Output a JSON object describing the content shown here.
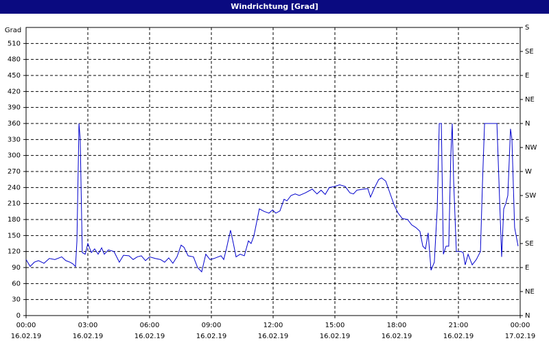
{
  "chart_data": {
    "type": "line",
    "title": "Windrichtung [Grad]",
    "y_label": "Grad",
    "color": "#0000cc",
    "grid": true,
    "xlim": [
      0,
      24
    ],
    "xticks": [
      {
        "value": 0,
        "label": "00:00"
      },
      {
        "value": 3,
        "label": "03:00"
      },
      {
        "value": 6,
        "label": "06:00"
      },
      {
        "value": 9,
        "label": "09:00"
      },
      {
        "value": 12,
        "label": "12:00"
      },
      {
        "value": 15,
        "label": "15:00"
      },
      {
        "value": 18,
        "label": "18:00"
      },
      {
        "value": 21,
        "label": "21:00"
      },
      {
        "value": 24,
        "label": "00:00"
      }
    ],
    "xtick_dates": [
      "16.02.19",
      "16.02.19",
      "16.02.19",
      "16.02.19",
      "16.02.19",
      "16.02.19",
      "16.02.19",
      "16.02.19",
      "17.02.19"
    ],
    "ylim": [
      0,
      540
    ],
    "yticks": [
      0,
      30,
      60,
      90,
      120,
      150,
      180,
      210,
      240,
      270,
      300,
      330,
      360,
      390,
      420,
      450,
      480,
      510
    ],
    "y2lim": [
      0,
      540
    ],
    "y2ticks": [
      {
        "value": 0,
        "label": "N"
      },
      {
        "value": 45,
        "label": "NE"
      },
      {
        "value": 90,
        "label": "E"
      },
      {
        "value": 135,
        "label": "SE"
      },
      {
        "value": 180,
        "label": "S"
      },
      {
        "value": 225,
        "label": "SW"
      },
      {
        "value": 270,
        "label": "W"
      },
      {
        "value": 315,
        "label": "NW"
      },
      {
        "value": 360,
        "label": "N"
      },
      {
        "value": 405,
        "label": "NE"
      },
      {
        "value": 450,
        "label": "E"
      },
      {
        "value": 495,
        "label": "SE"
      },
      {
        "value": 540,
        "label": "S"
      }
    ],
    "x": [
      0,
      0.2,
      0.4,
      0.6,
      0.87,
      1.13,
      1.4,
      1.73,
      1.93,
      2.13,
      2.27,
      2.4,
      2.47,
      2.57,
      2.63,
      2.73,
      2.87,
      3.0,
      3.17,
      3.33,
      3.5,
      3.67,
      3.8,
      4.0,
      4.27,
      4.53,
      4.73,
      5.0,
      5.2,
      5.4,
      5.6,
      5.8,
      6.0,
      6.27,
      6.53,
      6.73,
      6.93,
      7.13,
      7.33,
      7.53,
      7.67,
      7.87,
      8.13,
      8.33,
      8.53,
      8.73,
      8.93,
      9.13,
      9.33,
      9.47,
      9.6,
      9.73,
      9.93,
      10.07,
      10.2,
      10.4,
      10.6,
      10.8,
      10.93,
      11.07,
      11.2,
      11.33,
      11.57,
      11.8,
      11.97,
      12.13,
      12.33,
      12.53,
      12.67,
      12.87,
      13.07,
      13.27,
      13.57,
      13.9,
      14.13,
      14.33,
      14.53,
      14.73,
      15.0,
      15.23,
      15.5,
      15.73,
      15.9,
      16.07,
      16.4,
      16.6,
      16.73,
      16.93,
      17.13,
      17.27,
      17.47,
      17.67,
      17.87,
      18.07,
      18.27,
      18.53,
      18.73,
      18.93,
      19.13,
      19.27,
      19.4,
      19.53,
      19.67,
      19.83,
      19.97,
      20.07,
      20.17,
      20.27,
      20.4,
      20.53,
      20.63,
      20.7,
      20.77,
      20.9,
      21.13,
      21.23,
      21.33,
      21.47,
      21.67,
      21.87,
      22.07,
      22.17,
      22.27,
      22.73,
      22.87,
      22.97,
      23.1,
      23.2,
      23.3,
      23.4,
      23.53,
      23.6,
      23.73,
      23.9
    ],
    "values": [
      105,
      92,
      100,
      103,
      98,
      107,
      105,
      110,
      103,
      100,
      97,
      92,
      140,
      360,
      330,
      118,
      115,
      135,
      118,
      125,
      115,
      127,
      115,
      123,
      120,
      100,
      113,
      112,
      105,
      110,
      112,
      103,
      110,
      107,
      105,
      100,
      108,
      98,
      110,
      132,
      128,
      112,
      110,
      90,
      82,
      115,
      105,
      107,
      110,
      112,
      105,
      125,
      160,
      135,
      110,
      115,
      112,
      140,
      135,
      150,
      175,
      200,
      195,
      192,
      198,
      192,
      196,
      218,
      215,
      225,
      228,
      225,
      230,
      237,
      228,
      235,
      227,
      240,
      242,
      245,
      242,
      230,
      228,
      235,
      237,
      238,
      222,
      240,
      255,
      258,
      252,
      230,
      208,
      192,
      182,
      180,
      170,
      165,
      158,
      130,
      125,
      155,
      85,
      100,
      200,
      360,
      360,
      115,
      130,
      130,
      300,
      360,
      250,
      120,
      120,
      118,
      95,
      115,
      95,
      105,
      120,
      250,
      360,
      360,
      360,
      250,
      110,
      200,
      210,
      225,
      350,
      330,
      165,
      130
    ]
  }
}
